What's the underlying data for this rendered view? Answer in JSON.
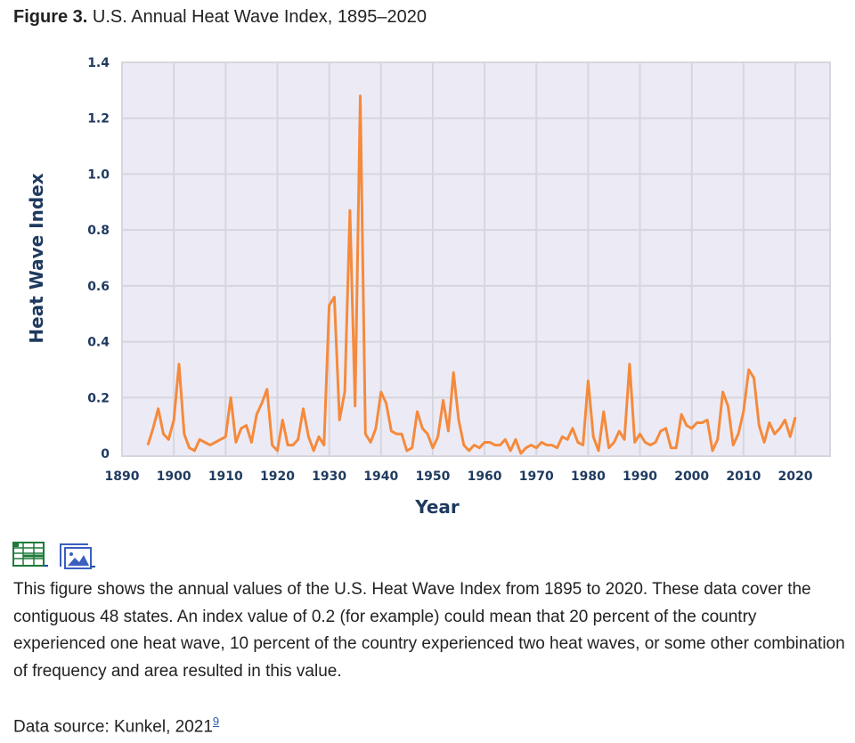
{
  "figure": {
    "label": "Figure 3.",
    "title": "U.S. Annual Heat Wave Index, 1895–2020"
  },
  "chart_data": {
    "type": "line",
    "title": "U.S. Annual Heat Wave Index, 1895–2020",
    "xlabel": "Year",
    "ylabel": "Heat Wave Index",
    "xlim": [
      1890,
      2026.5
    ],
    "ylim": [
      0,
      1.4
    ],
    "grid": true,
    "line_color": "#f58a3c",
    "x_ticks": [
      "1890",
      "1900",
      "1910",
      "1920",
      "1930",
      "1940",
      "1950",
      "1960",
      "1970",
      "1980",
      "1990",
      "2000",
      "2010",
      "2020"
    ],
    "y_ticks": [
      "0",
      "0.2",
      "0.4",
      "0.6",
      "0.8",
      "1.0",
      "1.2",
      "1.4"
    ],
    "x_start": 1895,
    "values": [
      0.03,
      0.09,
      0.16,
      0.07,
      0.05,
      0.12,
      0.32,
      0.07,
      0.02,
      0.01,
      0.05,
      0.04,
      0.03,
      0.04,
      0.05,
      0.06,
      0.2,
      0.04,
      0.09,
      0.1,
      0.04,
      0.14,
      0.18,
      0.23,
      0.03,
      0.01,
      0.12,
      0.03,
      0.03,
      0.05,
      0.16,
      0.06,
      0.01,
      0.06,
      0.03,
      0.53,
      0.56,
      0.12,
      0.22,
      0.87,
      0.17,
      1.28,
      0.07,
      0.04,
      0.09,
      0.22,
      0.18,
      0.08,
      0.07,
      0.07,
      0.01,
      0.02,
      0.15,
      0.09,
      0.07,
      0.02,
      0.06,
      0.19,
      0.08,
      0.29,
      0.12,
      0.03,
      0.01,
      0.03,
      0.02,
      0.04,
      0.04,
      0.03,
      0.03,
      0.05,
      0.01,
      0.05,
      0.0,
      0.02,
      0.03,
      0.02,
      0.04,
      0.03,
      0.03,
      0.02,
      0.06,
      0.05,
      0.09,
      0.04,
      0.03,
      0.26,
      0.06,
      0.01,
      0.15,
      0.02,
      0.04,
      0.08,
      0.05,
      0.32,
      0.04,
      0.07,
      0.04,
      0.03,
      0.04,
      0.08,
      0.09,
      0.02,
      0.02,
      0.14,
      0.1,
      0.09,
      0.11,
      0.11,
      0.12,
      0.01,
      0.05,
      0.22,
      0.17,
      0.03,
      0.07,
      0.15,
      0.3,
      0.27,
      0.1,
      0.04,
      0.11,
      0.07,
      0.09,
      0.12,
      0.06,
      0.13
    ]
  },
  "icons": [
    "spreadsheet-icon",
    "image-icon"
  ],
  "description": "This figure shows the annual values of the U.S. Heat Wave Index from 1895 to 2020. These data cover the contiguous 48 states. An index value of 0.2 (for example) could mean that 20 percent of the country experienced one heat wave, 10 percent of the country experienced two heat waves, or some other combination of frequency and area resulted in this value.",
  "source": {
    "text": "Data source: Kunkel, 2021",
    "ref": "9"
  }
}
